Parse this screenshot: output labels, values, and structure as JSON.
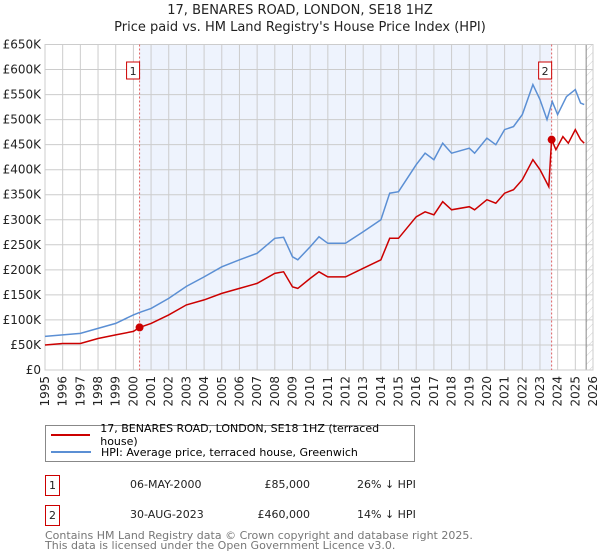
{
  "chart_data": {
    "type": "line",
    "title": "17, BENARES ROAD, LONDON, SE18 1HZ",
    "subtitle": "Price paid vs. HM Land Registry's House Price Index (HPI)",
    "xlim": [
      1995,
      2026
    ],
    "ylim": [
      0,
      650000
    ],
    "x_ticks": [
      "1995",
      "1996",
      "1997",
      "1998",
      "1999",
      "2000",
      "2001",
      "2002",
      "2003",
      "2004",
      "2005",
      "2006",
      "2007",
      "2008",
      "2009",
      "2010",
      "2011",
      "2012",
      "2013",
      "2014",
      "2015",
      "2016",
      "2017",
      "2018",
      "2019",
      "2020",
      "2021",
      "2022",
      "2023",
      "2024",
      "2025",
      "2026"
    ],
    "y_ticks": [
      {
        "value": 0,
        "label": "£0"
      },
      {
        "value": 50000,
        "label": "£50K"
      },
      {
        "value": 100000,
        "label": "£100K"
      },
      {
        "value": 150000,
        "label": "£150K"
      },
      {
        "value": 200000,
        "label": "£200K"
      },
      {
        "value": 250000,
        "label": "£250K"
      },
      {
        "value": 300000,
        "label": "£300K"
      },
      {
        "value": 350000,
        "label": "£350K"
      },
      {
        "value": 400000,
        "label": "£400K"
      },
      {
        "value": 450000,
        "label": "£450K"
      },
      {
        "value": 500000,
        "label": "£500K"
      },
      {
        "value": 550000,
        "label": "£550K"
      },
      {
        "value": 600000,
        "label": "£600K"
      },
      {
        "value": 650000,
        "label": "£650K"
      }
    ],
    "grid": true,
    "legend_position": "below",
    "data_end": 2025.5,
    "series": [
      {
        "name": "17, BENARES ROAD, LONDON, SE18 1HZ (terraced house)",
        "color": "#cc0000",
        "x": [
          1995,
          1996,
          1997,
          1998,
          1999,
          2000,
          2000.35,
          2001,
          2002,
          2003,
          2004,
          2005,
          2006,
          2007,
          2008,
          2008.5,
          2009,
          2009.3,
          2010,
          2010.5,
          2011,
          2012,
          2013,
          2014,
          2014.5,
          2015,
          2016,
          2016.5,
          2017,
          2017.5,
          2018,
          2019,
          2019.3,
          2020,
          2020.5,
          2021,
          2021.5,
          2022,
          2022.6,
          2023,
          2023.5,
          2023.66,
          2023.9,
          2024.3,
          2024.6,
          2025,
          2025.3,
          2025.5
        ],
        "y": [
          50000,
          53000,
          53000,
          63000,
          70000,
          77000,
          85000,
          93000,
          110000,
          130000,
          140000,
          153000,
          163000,
          173000,
          193000,
          196000,
          166000,
          163000,
          183000,
          196000,
          186000,
          186000,
          203000,
          220000,
          263000,
          263000,
          306000,
          316000,
          310000,
          336000,
          320000,
          326000,
          320000,
          340000,
          333000,
          353000,
          360000,
          380000,
          420000,
          400000,
          366000,
          460000,
          440000,
          466000,
          453000,
          480000,
          460000,
          453000
        ]
      },
      {
        "name": "HPI: Average price, terraced house, Greenwich",
        "color": "#5b8fd4",
        "x": [
          1995,
          1996,
          1997,
          1998,
          1999,
          2000,
          2000.35,
          2001,
          2002,
          2003,
          2004,
          2005,
          2006,
          2007,
          2008,
          2008.5,
          2009,
          2009.3,
          2010,
          2010.5,
          2011,
          2012,
          2013,
          2014,
          2014.5,
          2015,
          2016,
          2016.5,
          2017,
          2017.5,
          2018,
          2019,
          2019.3,
          2020,
          2020.5,
          2021,
          2021.5,
          2022,
          2022.6,
          2023,
          2023.4,
          2023.7,
          2024,
          2024.5,
          2025,
          2025.3,
          2025.5
        ],
        "y": [
          67000,
          70000,
          73000,
          83000,
          93000,
          110000,
          115000,
          123000,
          143000,
          167000,
          186000,
          206000,
          220000,
          233000,
          263000,
          265000,
          226000,
          220000,
          246000,
          266000,
          253000,
          253000,
          276000,
          300000,
          353000,
          356000,
          410000,
          433000,
          420000,
          453000,
          433000,
          443000,
          433000,
          463000,
          450000,
          480000,
          486000,
          510000,
          570000,
          540000,
          500000,
          536000,
          510000,
          546000,
          560000,
          533000,
          530000
        ]
      }
    ],
    "annotations": [
      {
        "label": "1",
        "x": 2000.35,
        "y": 85000
      },
      {
        "label": "2",
        "x": 2023.66,
        "y": 460000
      }
    ]
  },
  "legend": {
    "property": "17, BENARES ROAD, LONDON, SE18 1HZ (terraced house)",
    "hpi": "HPI: Average price, terraced house, Greenwich"
  },
  "sales": [
    {
      "num": "1",
      "date": "06-MAY-2000",
      "price": "£85,000",
      "hpi": "26% ↓ HPI"
    },
    {
      "num": "2",
      "date": "30-AUG-2023",
      "price": "£460,000",
      "hpi": "14% ↓ HPI"
    }
  ],
  "footer": {
    "line1": "Contains HM Land Registry data © Crown copyright and database right 2025.",
    "line2": "This data is licensed under the Open Government Licence v3.0."
  }
}
